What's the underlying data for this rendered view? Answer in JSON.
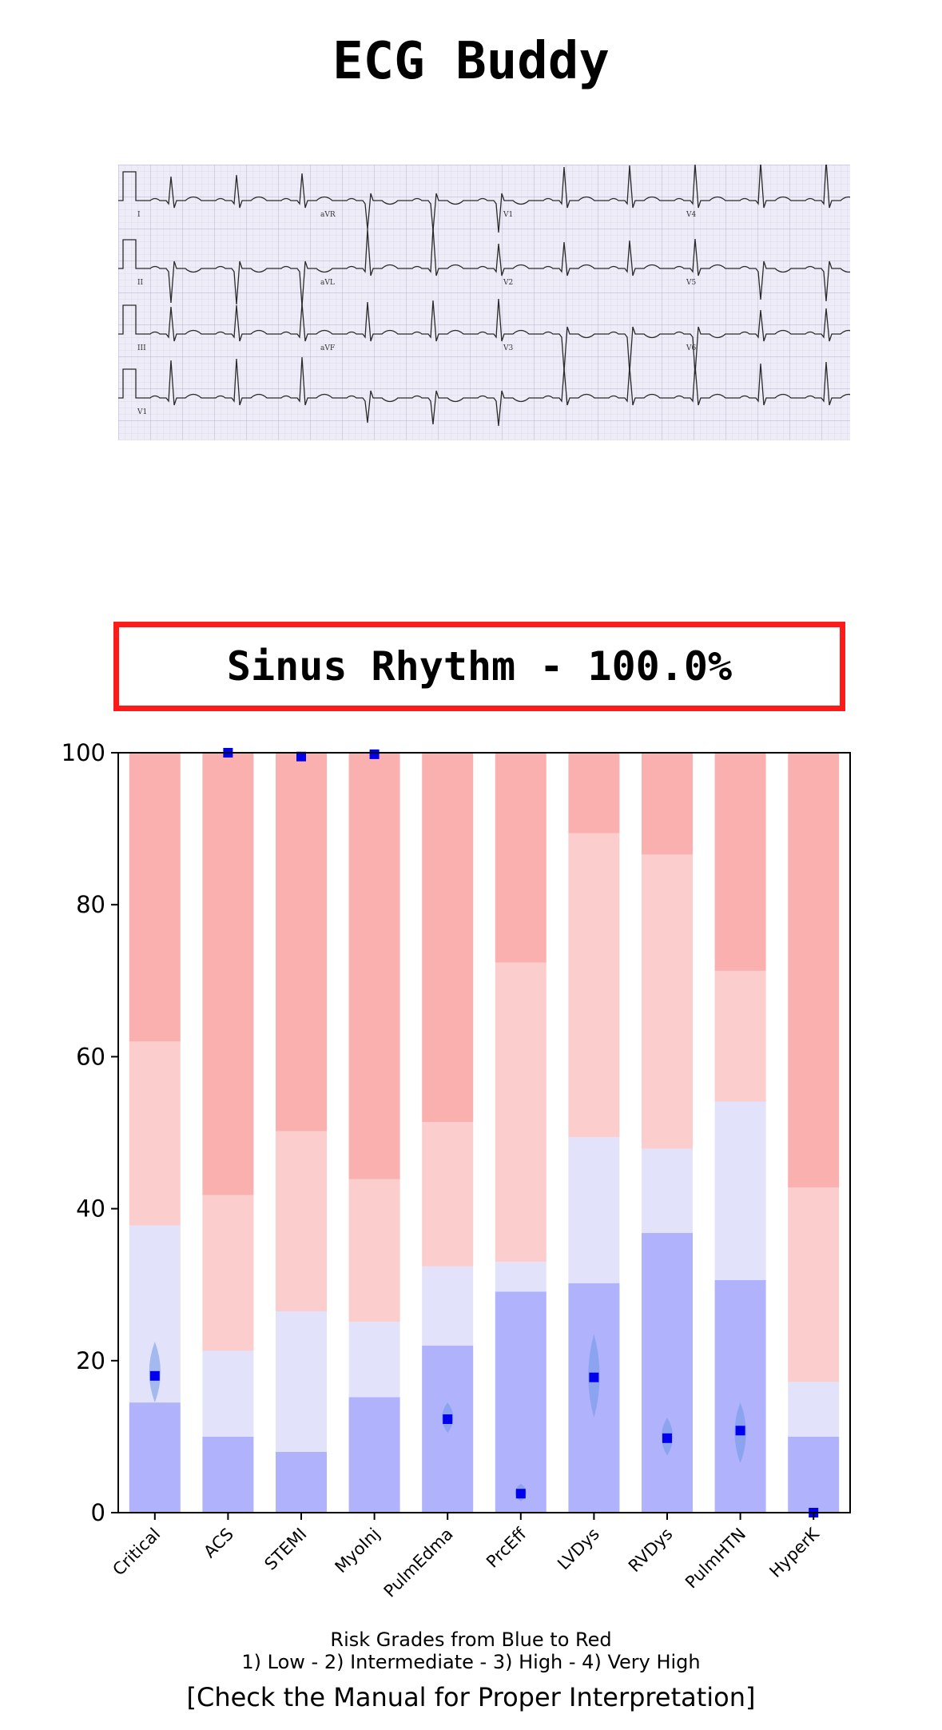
{
  "app": {
    "title": "ECG Buddy"
  },
  "ecg": {
    "lead_labels": [
      "I",
      "aVR",
      "V1",
      "V4",
      "II",
      "aVL",
      "V2",
      "V5",
      "III",
      "aVF",
      "V3",
      "V6",
      "V1"
    ]
  },
  "result": {
    "text": "Sinus Rhythm - 100.0%"
  },
  "colors": {
    "box_border": "#ff1a1a",
    "grade_low": "#b0b2fb",
    "grade_intermediate": "#e2e3fa",
    "grade_high": "#fbcdcd",
    "grade_very_high": "#fbb0b0",
    "marker": "#0000ee",
    "marker_range": "#6f97e6"
  },
  "chart_data": {
    "type": "bar",
    "categories": [
      "Critical",
      "ACS",
      "STEMI",
      "MyoInj",
      "PulmEdma",
      "PrcEff",
      "LVDys",
      "RVDys",
      "PulmHTN",
      "HyperK"
    ],
    "ylim": [
      0,
      100
    ],
    "yticks": [
      0,
      20,
      40,
      60,
      80,
      100
    ],
    "stacked_thresholds": [
      [
        14.5,
        37.8,
        62.0,
        100
      ],
      [
        10.0,
        21.3,
        41.8,
        100
      ],
      [
        8.0,
        26.5,
        50.2,
        100
      ],
      [
        15.2,
        25.1,
        43.9,
        100
      ],
      [
        22.0,
        32.4,
        51.4,
        100
      ],
      [
        29.1,
        33.0,
        72.4,
        100
      ],
      [
        30.2,
        49.4,
        89.4,
        100
      ],
      [
        36.8,
        47.9,
        86.6,
        100
      ],
      [
        30.6,
        54.1,
        71.3,
        100
      ],
      [
        10.0,
        17.2,
        42.8,
        100
      ]
    ],
    "markers": [
      18.0,
      100.0,
      99.5,
      99.8,
      12.3,
      2.5,
      17.8,
      9.8,
      10.8,
      0.0
    ],
    "marker_ranges": [
      [
        14.5,
        22.5
      ],
      null,
      null,
      null,
      [
        10.5,
        14.5
      ],
      [
        1.5,
        3.8
      ],
      [
        12.5,
        23.5
      ],
      [
        7.5,
        12.5
      ],
      [
        6.5,
        14.5
      ],
      null
    ],
    "xlabel_line1": "Risk Grades from Blue to Red",
    "xlabel_line2": "1) Low - 2) Intermediate - 3) High - 4) Very High",
    "note": "[Check the Manual for Proper Interpretation]",
    "grid": false
  }
}
